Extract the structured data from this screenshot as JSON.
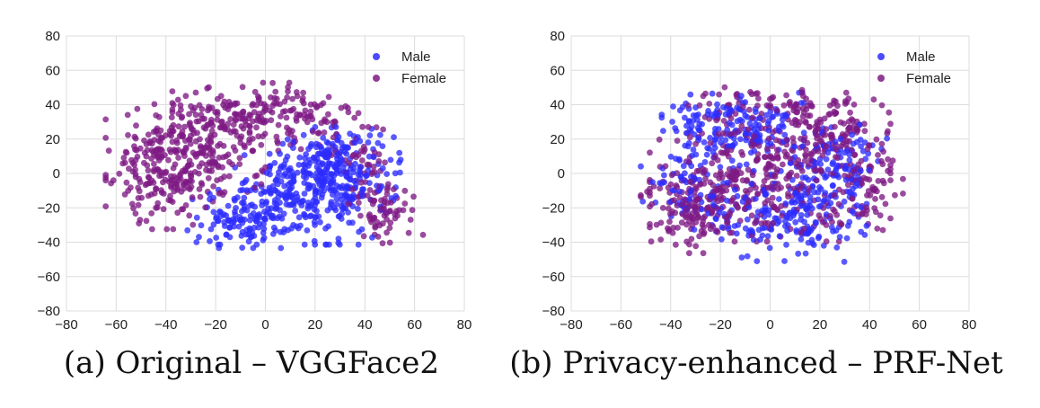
{
  "chart_data": [
    {
      "type": "scatter",
      "title": "",
      "xlabel": "",
      "ylabel": "",
      "xlim": [
        -80,
        80
      ],
      "ylim": [
        -80,
        80
      ],
      "xticks": [
        -80,
        -60,
        -40,
        -20,
        0,
        20,
        40,
        60,
        80
      ],
      "yticks": [
        -80,
        -60,
        -40,
        -20,
        0,
        20,
        40,
        60,
        80
      ],
      "grid": true,
      "legend_position": "top-right",
      "caption": "(a) Original – VGGFace2",
      "series": [
        {
          "name": "Male",
          "color": "#2b2bff",
          "clusters": [
            {
              "cx": 15,
              "cy": -15,
              "sx": 17,
              "sy": 12,
              "n": 260
            },
            {
              "cx": 28,
              "cy": 5,
              "sx": 12,
              "sy": 10,
              "n": 200
            },
            {
              "cx": -10,
              "cy": -28,
              "sx": 10,
              "sy": 7,
              "n": 90
            }
          ]
        },
        {
          "name": "Female",
          "color": "#7d1a84",
          "clusters": [
            {
              "cx": -40,
              "cy": 5,
              "sx": 11,
              "sy": 17,
              "n": 230
            },
            {
              "cx": 0,
              "cy": 33,
              "sx": 17,
              "sy": 9,
              "n": 210
            },
            {
              "cx": -22,
              "cy": 10,
              "sx": 10,
              "sy": 14,
              "n": 110
            },
            {
              "cx": 48,
              "cy": -22,
              "sx": 7,
              "sy": 9,
              "n": 70
            },
            {
              "cx": 38,
              "cy": 10,
              "sx": 6,
              "sy": 10,
              "n": 40
            }
          ]
        }
      ]
    },
    {
      "type": "scatter",
      "title": "",
      "xlabel": "",
      "ylabel": "",
      "xlim": [
        -80,
        80
      ],
      "ylim": [
        -80,
        80
      ],
      "xticks": [
        -80,
        -60,
        -40,
        -20,
        0,
        20,
        40,
        60,
        80
      ],
      "yticks": [
        -80,
        -60,
        -40,
        -20,
        0,
        20,
        40,
        60,
        80
      ],
      "grid": true,
      "legend_position": "top-right",
      "caption": "(b) Privacy-enhanced – PRF-Net",
      "series": [
        {
          "name": "Male",
          "color": "#2b2bff",
          "clusters": [
            {
              "cx": -15,
              "cy": 25,
              "sx": 13,
              "sy": 10,
              "n": 180
            },
            {
              "cx": 8,
              "cy": -25,
              "sx": 14,
              "sy": 12,
              "n": 180
            },
            {
              "cx": 25,
              "cy": 5,
              "sx": 10,
              "sy": 15,
              "n": 110
            },
            {
              "cx": -30,
              "cy": -10,
              "sx": 10,
              "sy": 12,
              "n": 70
            }
          ]
        },
        {
          "name": "Female",
          "color": "#7d1a84",
          "clusters": [
            {
              "cx": 0,
              "cy": 0,
              "sx": 22,
              "sy": 18,
              "n": 380
            },
            {
              "cx": -30,
              "cy": -20,
              "sx": 10,
              "sy": 12,
              "n": 120
            },
            {
              "cx": 28,
              "cy": 25,
              "sx": 9,
              "sy": 9,
              "n": 90
            },
            {
              "cx": 38,
              "cy": -10,
              "sx": 7,
              "sy": 12,
              "n": 60
            },
            {
              "cx": 0,
              "cy": 38,
              "sx": 14,
              "sy": 6,
              "n": 60
            }
          ]
        }
      ]
    }
  ]
}
